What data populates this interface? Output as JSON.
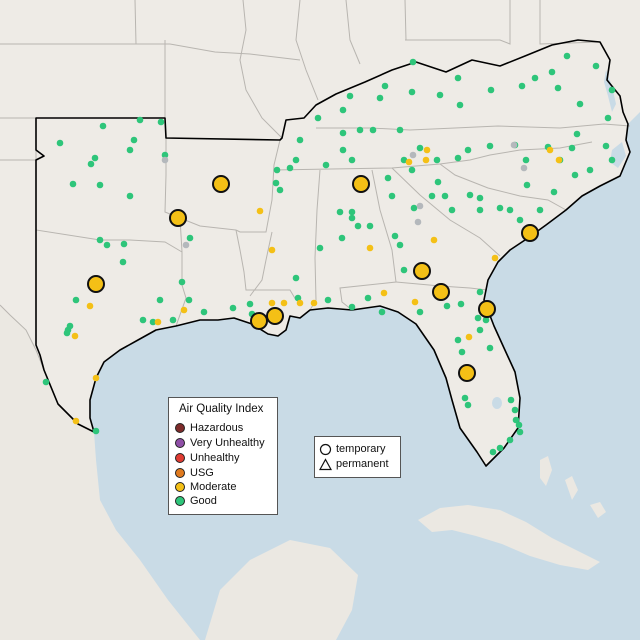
{
  "colors": {
    "ocean": "#c9dbe6",
    "land": "#eeebe6",
    "other_land": "#ebe8e2",
    "border": "#b8b5b0",
    "region_outline": "#000000",
    "Hazardous": "#7e2b2a",
    "Very Unhealthy": "#8f4fa7",
    "Unhealthy": "#e03b32",
    "USG": "#e07a1e",
    "Moderate": "#f4c016",
    "Good": "#2ec57a",
    "no_data": "#b4b8bc"
  },
  "legend_aqi": {
    "title": "Air Quality Index",
    "items": [
      {
        "label": "Hazardous",
        "color": "#7e2b2a"
      },
      {
        "label": "Very Unhealthy",
        "color": "#8f4fa7"
      },
      {
        "label": "Unhealthy",
        "color": "#e03b32"
      },
      {
        "label": "USG",
        "color": "#e07a1e"
      },
      {
        "label": "Moderate",
        "color": "#f4c016"
      },
      {
        "label": "Good",
        "color": "#2ec57a"
      }
    ]
  },
  "legend_monitor": {
    "temporary": "temporary",
    "permanent": "permanent"
  }
}
